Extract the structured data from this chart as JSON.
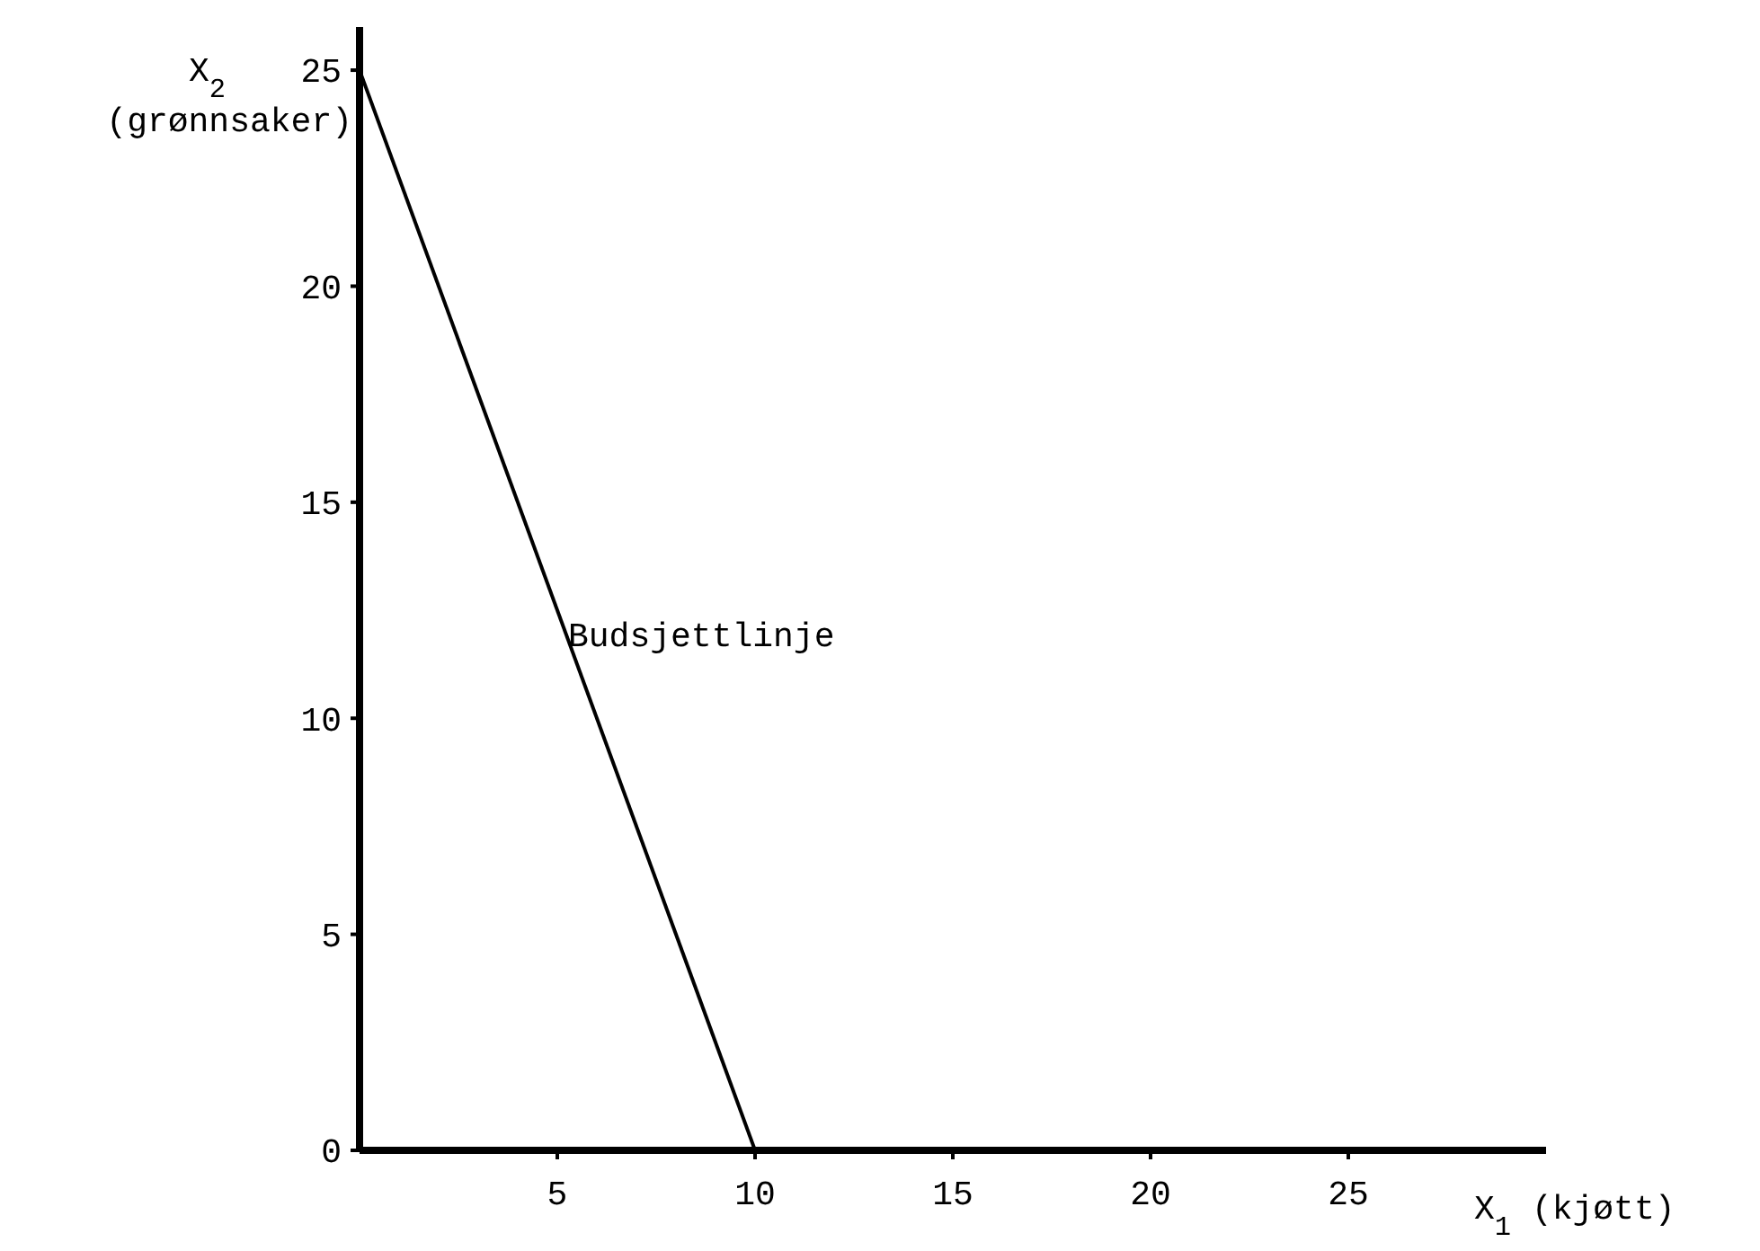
{
  "chart_data": {
    "type": "line",
    "xlabel": "X$_{1}$ (kjøtt)",
    "ylabel": "X$_{2}$ (grønnsaker)",
    "x": [
      0,
      10
    ],
    "series": [
      {
        "name": "Budsjettlinje",
        "color": "#000000",
        "values": [
          25,
          0
        ]
      }
    ],
    "xlim": [
      0,
      30
    ],
    "ylim": [
      0,
      26
    ],
    "xticks": [
      5,
      10,
      15,
      20,
      25
    ],
    "yticks": [
      0,
      5,
      10,
      15,
      20,
      25
    ],
    "grid": false,
    "marker": "none",
    "line_style": "solid"
  }
}
